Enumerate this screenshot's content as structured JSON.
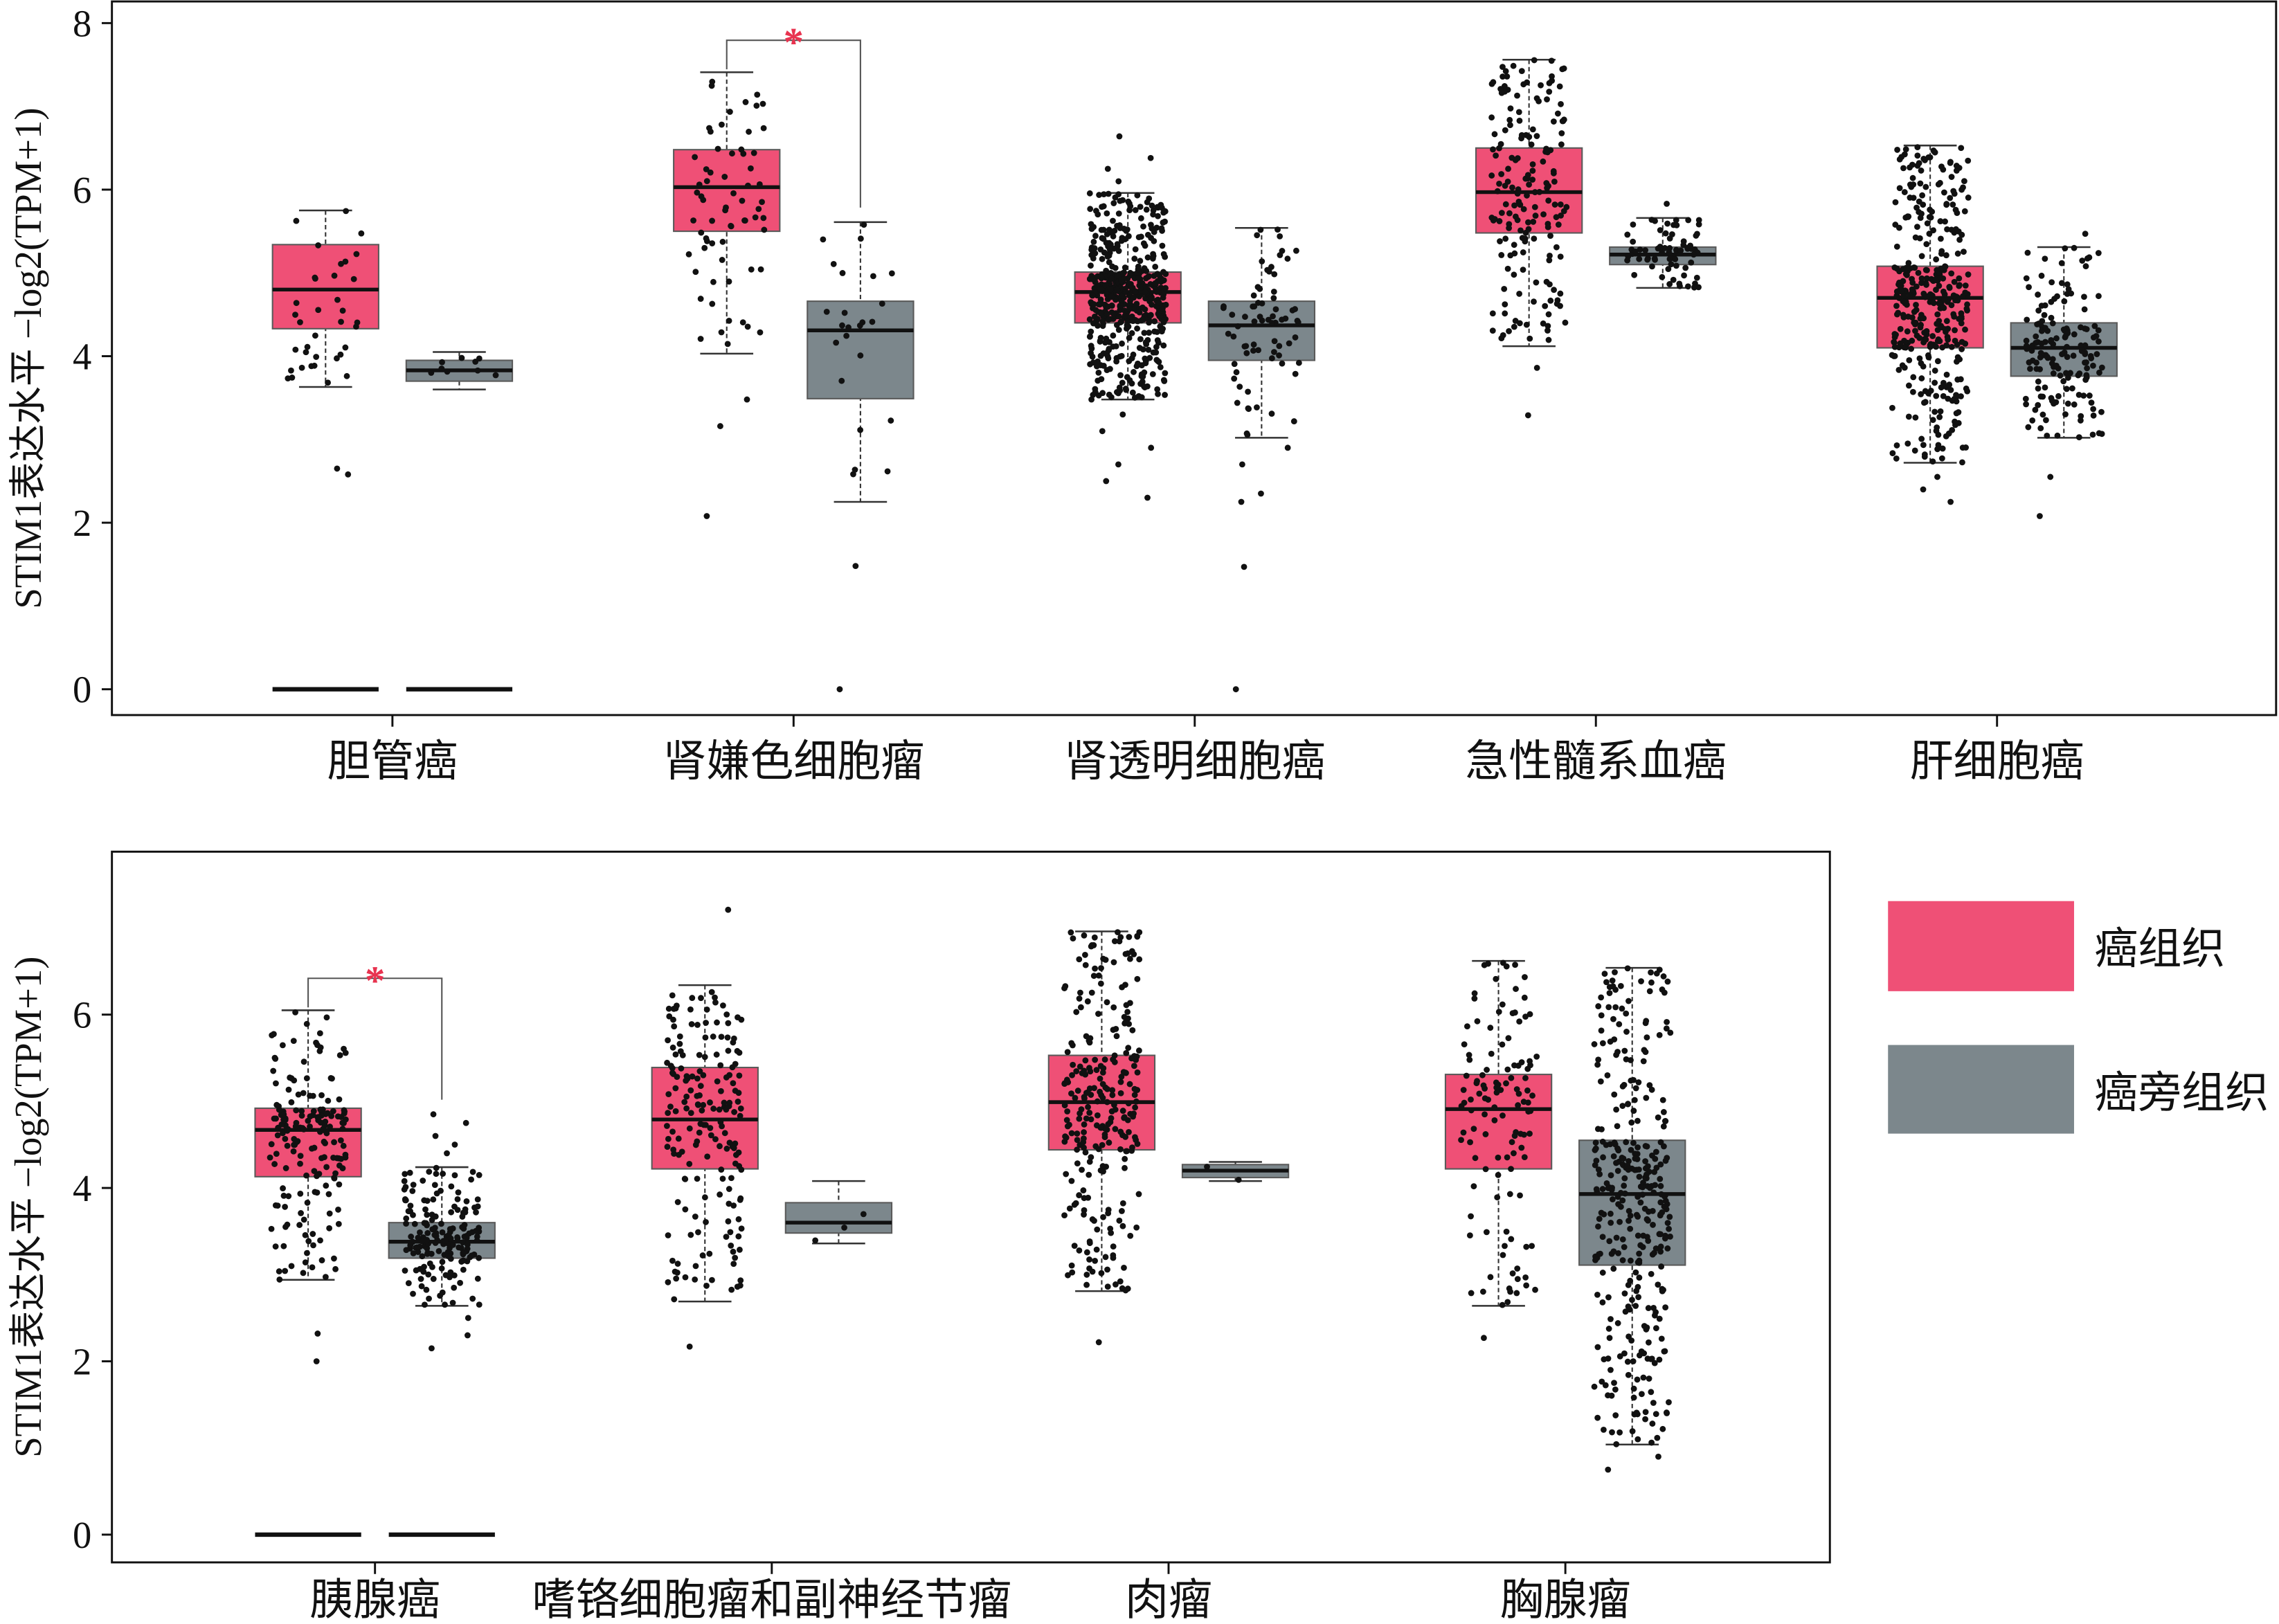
{
  "chart_data": [
    {
      "type": "box",
      "ylabel": "STIM1表达水平 −log2(TPM+1)",
      "ylim": [
        -0.31,
        8.26
      ],
      "yticks": [
        0,
        2,
        4,
        6,
        8
      ],
      "grid": false,
      "categories": [
        "胆管癌",
        "肾嫌色细胞瘤",
        "肾透明细胞癌",
        "急性髓系血癌",
        "肝细胞癌"
      ],
      "series": [
        {
          "color": "#ef5076",
          "boxes": [
            {
              "whisker_low": 3.63,
              "q1": 4.33,
              "median": 4.8,
              "q3": 5.34,
              "whisker_high": 5.75,
              "outliers": [
                2.65,
                2.58
              ],
              "zero_values": true
            },
            {
              "whisker_low": 4.03,
              "q1": 5.5,
              "median": 6.03,
              "q3": 6.48,
              "whisker_high": 7.41,
              "outliers": [
                3.48,
                3.16,
                2.08
              ],
              "zero_values": false
            },
            {
              "whisker_low": 3.48,
              "q1": 4.4,
              "median": 4.77,
              "q3": 5.01,
              "whisker_high": 5.96,
              "outliers": [
                6.64,
                6.38,
                6.25,
                6.1,
                3.3,
                3.1,
                2.9,
                2.7,
                2.5,
                2.3
              ],
              "zero_values": false
            },
            {
              "whisker_low": 4.12,
              "q1": 5.48,
              "median": 5.97,
              "q3": 6.5,
              "whisker_high": 7.56,
              "outliers": [
                3.86,
                3.29
              ],
              "zero_values": false
            },
            {
              "whisker_low": 2.72,
              "q1": 4.1,
              "median": 4.7,
              "q3": 5.08,
              "whisker_high": 6.53,
              "outliers": [
                2.55,
                2.4,
                2.25
              ],
              "zero_values": false
            }
          ]
        },
        {
          "color": "#7c878c",
          "boxes": [
            {
              "whisker_low": 3.6,
              "q1": 3.7,
              "median": 3.83,
              "q3": 3.95,
              "whisker_high": 4.05,
              "outliers": [],
              "zero_values": true
            },
            {
              "whisker_low": 2.25,
              "q1": 3.49,
              "median": 4.31,
              "q3": 4.66,
              "whisker_high": 5.61,
              "outliers": [
                1.48,
                0
              ],
              "zero_values": false
            },
            {
              "whisker_low": 3.02,
              "q1": 3.95,
              "median": 4.37,
              "q3": 4.66,
              "whisker_high": 5.54,
              "outliers": [
                2.9,
                2.7,
                2.35,
                2.25,
                1.47,
                0
              ],
              "zero_values": false
            },
            {
              "whisker_low": 4.82,
              "q1": 5.1,
              "median": 5.22,
              "q3": 5.31,
              "whisker_high": 5.66,
              "outliers": [
                5.83
              ],
              "zero_values": false
            },
            {
              "whisker_low": 3.02,
              "q1": 3.76,
              "median": 4.1,
              "q3": 4.4,
              "whisker_high": 5.31,
              "outliers": [
                5.47,
                2.55,
                2.08
              ],
              "zero_values": false
            }
          ]
        }
      ],
      "annotations": [
        {
          "category_index": 1,
          "text": "*",
          "color": "#e8334f"
        }
      ]
    },
    {
      "type": "box",
      "ylabel": "STIM1表达水平 −log2(TPM+1)",
      "ylim": [
        -0.32,
        7.88
      ],
      "yticks": [
        0,
        2,
        4,
        6
      ],
      "grid": false,
      "legend": "right",
      "categories": [
        "胰腺癌",
        "嗜铬细胞瘤和副神经节瘤",
        "肉瘤",
        "胸腺瘤"
      ],
      "series": [
        {
          "name": "癌组织",
          "color": "#ef5076",
          "boxes": [
            {
              "whisker_low": 2.94,
              "q1": 4.13,
              "median": 4.67,
              "q3": 4.92,
              "whisker_high": 6.05,
              "outliers": [
                2.32,
                2.0
              ],
              "zero_values": true
            },
            {
              "whisker_low": 2.69,
              "q1": 4.22,
              "median": 4.79,
              "q3": 5.39,
              "whisker_high": 6.34,
              "outliers": [
                7.21,
                2.17
              ],
              "zero_values": false
            },
            {
              "whisker_low": 2.81,
              "q1": 4.44,
              "median": 4.99,
              "q3": 5.53,
              "whisker_high": 6.96,
              "outliers": [
                2.22
              ],
              "zero_values": false
            },
            {
              "whisker_low": 2.64,
              "q1": 4.22,
              "median": 4.91,
              "q3": 5.31,
              "whisker_high": 6.62,
              "outliers": [
                2.27
              ],
              "zero_values": false
            }
          ]
        },
        {
          "name": "癌旁组织",
          "color": "#7c878c",
          "boxes": [
            {
              "whisker_low": 2.64,
              "q1": 3.19,
              "median": 3.38,
              "q3": 3.6,
              "whisker_high": 4.24,
              "outliers": [
                4.85,
                4.75,
                4.6,
                4.5,
                4.4,
                2.5,
                2.3,
                2.15
              ],
              "zero_values": true
            },
            {
              "whisker_low": 3.36,
              "q1": 3.48,
              "median": 3.6,
              "q3": 3.83,
              "whisker_high": 4.08,
              "outliers": [],
              "zero_values": false
            },
            {
              "whisker_low": 4.08,
              "q1": 4.12,
              "median": 4.2,
              "q3": 4.27,
              "whisker_high": 4.3,
              "outliers": [],
              "zero_values": false
            },
            {
              "whisker_low": 1.04,
              "q1": 3.11,
              "median": 3.93,
              "q3": 4.55,
              "whisker_high": 6.54,
              "outliers": [
                0.9,
                0.75
              ],
              "zero_values": false
            }
          ]
        }
      ],
      "annotations": [
        {
          "category_index": 0,
          "text": "*",
          "color": "#e8334f"
        }
      ]
    }
  ]
}
